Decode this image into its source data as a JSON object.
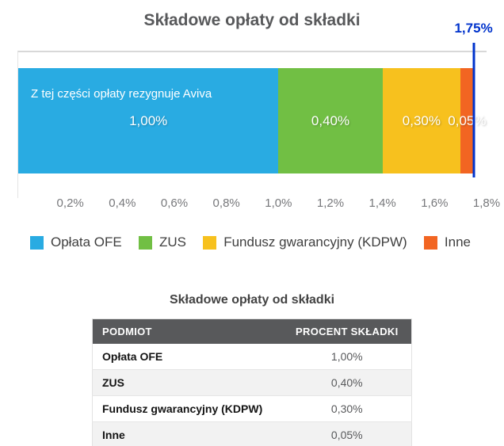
{
  "chart": {
    "title": "Składowe opłaty od składki",
    "annotation": "Z tej części opłaty rezygnuje Aviva",
    "total_label": "1,75%"
  },
  "chart_data": {
    "type": "bar",
    "orientation": "horizontal-stacked",
    "title": "Składowe opłaty od składki",
    "x_unit": "%",
    "xlim": [
      0,
      1.8
    ],
    "grid": false,
    "x_ticks": [
      "0,2%",
      "0,4%",
      "0,6%",
      "0,8%",
      "1,0%",
      "1,2%",
      "1,4%",
      "1,6%",
      "1,8%"
    ],
    "x_tick_values": [
      0.2,
      0.4,
      0.6,
      0.8,
      1.0,
      1.2,
      1.4,
      1.6,
      1.8
    ],
    "total": 1.75,
    "total_label": "1,75%",
    "total_color": "#0033cc",
    "annotation": "Z tej części opłaty rezygnuje Aviva",
    "legend_position": "bottom",
    "segments": [
      {
        "name": "Opłata OFE",
        "value": 1.0,
        "label": "1,00%",
        "color": "#29abe2"
      },
      {
        "name": "ZUS",
        "value": 0.4,
        "label": "0,40%",
        "color": "#71bf44"
      },
      {
        "name": "Fundusz gwarancyjny (KDPW)",
        "value": 0.3,
        "label": "0,30%",
        "color": "#f7c11e"
      },
      {
        "name": "Inne",
        "value": 0.05,
        "label": "0,05%",
        "color": "#f26522"
      }
    ]
  },
  "table": {
    "title": "Składowe opłaty od składki",
    "headers": [
      "PODMIOT",
      "PROCENT SKŁADKI"
    ],
    "rows": [
      {
        "podmiot": "Opłata OFE",
        "procent": "1,00%"
      },
      {
        "podmiot": "ZUS",
        "procent": "0,40%"
      },
      {
        "podmiot": "Fundusz gwarancyjny (KDPW)",
        "procent": "0,30%"
      },
      {
        "podmiot": "Inne",
        "procent": "0,05%"
      }
    ]
  }
}
